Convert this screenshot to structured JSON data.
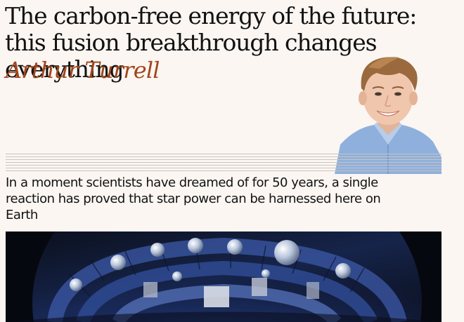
{
  "article": {
    "headline": "The carbon-free energy of the future: this fusion breakthrough changes everything",
    "author": "Arthur Turrell",
    "standfirst": "In a moment scientists have dreamed of for 50 years, a single reaction has proved that star power can be harnessed here on Earth"
  },
  "images": {
    "author_photo": "author-portrait",
    "hero_photo": "fusion-reactor-interior"
  },
  "colors": {
    "background": "#fbf6f2",
    "byline": "#a1461c",
    "text": "#121212"
  }
}
